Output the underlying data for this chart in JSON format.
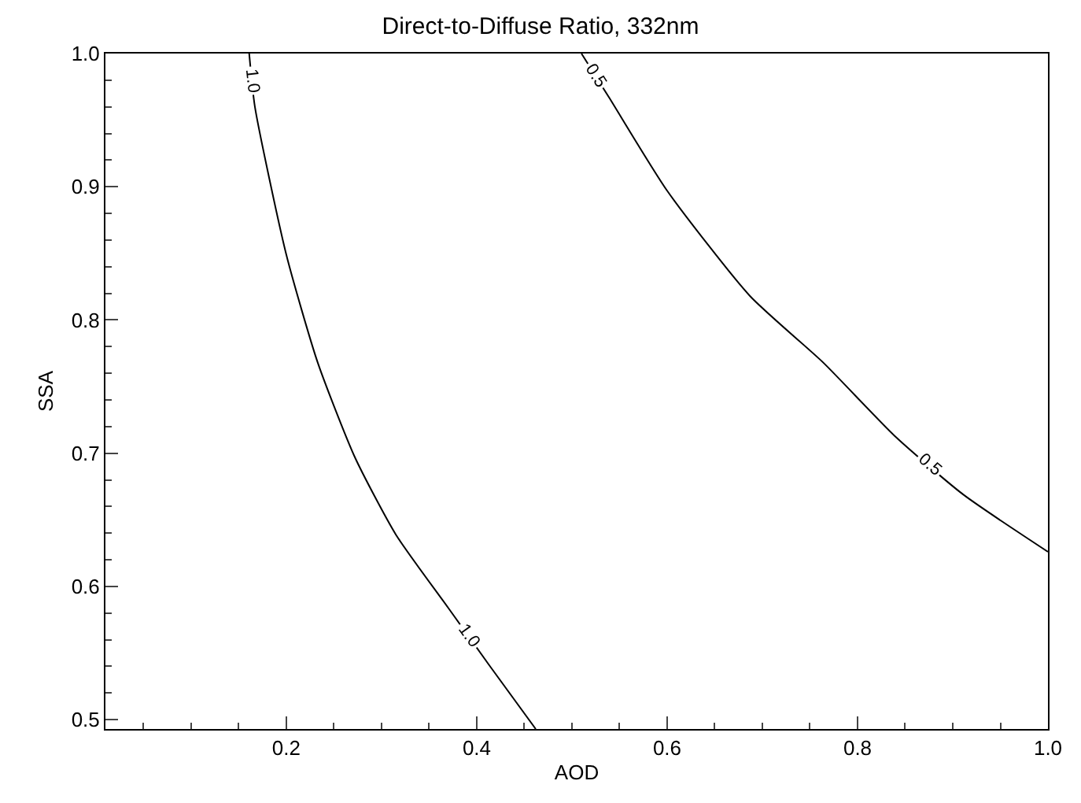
{
  "chart_data": {
    "type": "line",
    "title": "Direct-to-Diffuse Ratio, 332nm",
    "xlabel": "AOD",
    "ylabel": "SSA",
    "xlim": [
      0.01,
      1.0
    ],
    "xticks": [
      0.2,
      0.4,
      0.6,
      0.8,
      {
        "value": 1.0,
        "label": "1.0"
      }
    ],
    "ylim": [
      0.493,
      1.0
    ],
    "yticks": [
      0.5,
      0.6,
      0.7,
      0.8,
      0.9,
      {
        "value": 1.0,
        "label": "1.0"
      }
    ],
    "series": [
      {
        "name": "1.0",
        "color": "#000000",
        "x": [
          0.161,
          0.167,
          0.2,
          0.233,
          0.272,
          0.315,
          0.37,
          0.413,
          0.462
        ],
        "values": [
          1.0,
          0.96,
          0.849,
          0.768,
          0.697,
          0.639,
          0.584,
          0.541,
          0.493
        ]
      },
      {
        "name": "0.5",
        "color": "#000000",
        "x": [
          0.51,
          0.539,
          0.6,
          0.687,
          0.764,
          0.839,
          0.911,
          1.0
        ],
        "values": [
          1.0,
          0.967,
          0.897,
          0.818,
          0.768,
          0.713,
          0.669,
          0.626
        ]
      }
    ]
  }
}
